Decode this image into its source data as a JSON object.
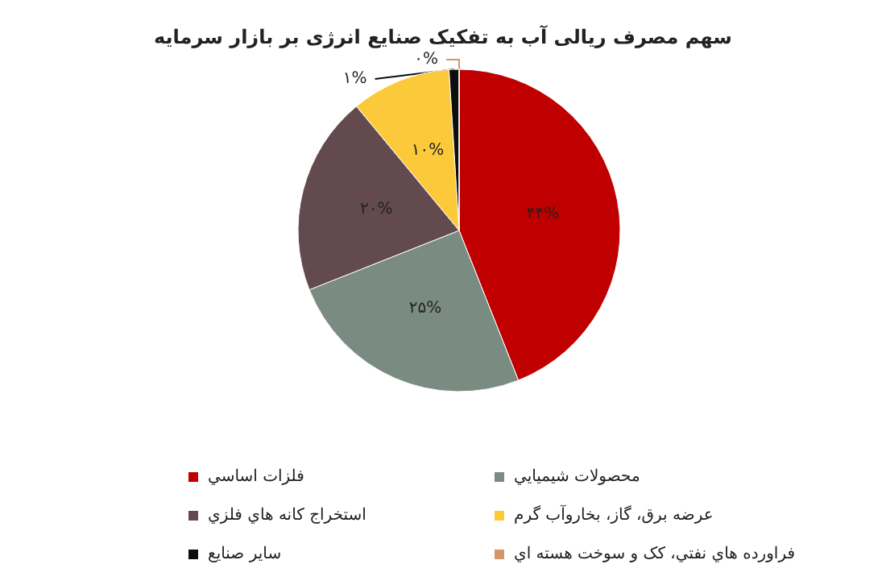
{
  "chart_data": {
    "type": "pie",
    "title": "سهم مصرف ریالی آب به تفکیک صنایع انرژی بر بازار سرمایه",
    "categories": [
      "فلزات اساسي",
      "محصولات شيميايي",
      "استخراج کانه هاي فلزي",
      "عرضه برق، گاز، بخاروآب گرم",
      "ساير صنايع",
      "فراورده هاي نفتي، کک و سوخت هسته اي"
    ],
    "values": [
      44,
      25,
      20,
      10,
      1,
      0
    ],
    "value_labels": [
      "۴۴%",
      "۲۵%",
      "۲۰%",
      "۱۰%",
      "۱%",
      "۰%"
    ],
    "colors": [
      "#c00000",
      "#7a8c82",
      "#634a4e",
      "#fcc93b",
      "#0d0d0d",
      "#d4956a"
    ],
    "legend": "bottom"
  }
}
